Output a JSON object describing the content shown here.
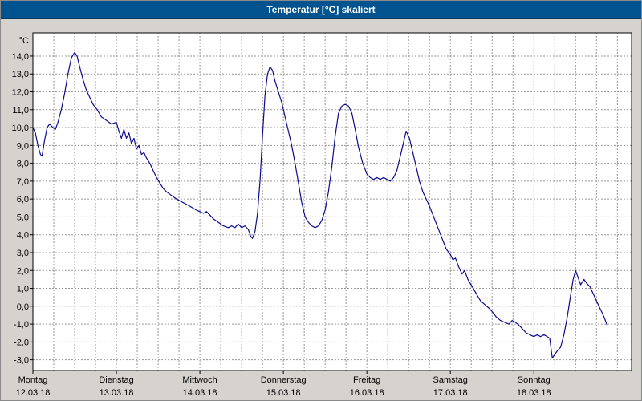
{
  "title_bar": {
    "title": "Temperatur [°C] skaliert",
    "bg_color": "#00538F",
    "text_color": "#ffffff"
  },
  "colors": {
    "window_bg": "#d6d3ce",
    "plot_bg": "#ffffff",
    "grid": "#979797",
    "axis": "#000000",
    "line": "#0b0b8f"
  },
  "chart_data": {
    "type": "line",
    "title": "Temperatur [°C] skaliert",
    "ylabel": "°C",
    "y_unit_label": "°C",
    "grid": "dashed",
    "legend": "none",
    "ylim": [
      -3.6,
      15.3
    ],
    "xlim_days": [
      0,
      7.17
    ],
    "x_minor_tick_days": 0.25,
    "y_ticks": [
      {
        "value": 14,
        "label": "14,0"
      },
      {
        "value": 13,
        "label": "13,0"
      },
      {
        "value": 12,
        "label": "12,0"
      },
      {
        "value": 11,
        "label": "11,0"
      },
      {
        "value": 10,
        "label": "10,0"
      },
      {
        "value": 9,
        "label": "9,0"
      },
      {
        "value": 8,
        "label": "8,0"
      },
      {
        "value": 7,
        "label": "7,0"
      },
      {
        "value": 6,
        "label": "6,0"
      },
      {
        "value": 5,
        "label": "5,0"
      },
      {
        "value": 4,
        "label": "4,0"
      },
      {
        "value": 3,
        "label": "3,0"
      },
      {
        "value": 2,
        "label": "2,0"
      },
      {
        "value": 1,
        "label": "1,0"
      },
      {
        "value": 0,
        "label": "0,0"
      },
      {
        "value": -1,
        "label": "-1,0"
      },
      {
        "value": -2,
        "label": "-2,0"
      },
      {
        "value": -3,
        "label": "-3,0"
      }
    ],
    "x_days": [
      {
        "t": 0,
        "day": "Montag",
        "date": "12.03.18"
      },
      {
        "t": 1,
        "day": "Dienstag",
        "date": "13.03.18"
      },
      {
        "t": 2,
        "day": "Mittwoch",
        "date": "14.03.18"
      },
      {
        "t": 3,
        "day": "Donnerstag",
        "date": "15.03.18"
      },
      {
        "t": 4,
        "day": "Freitag",
        "date": "16.03.18"
      },
      {
        "t": 5,
        "day": "Samstag",
        "date": "17.03.18"
      },
      {
        "t": 6,
        "day": "Sonntag",
        "date": "18.03.18"
      }
    ],
    "series": [
      {
        "name": "Temperatur",
        "color": "#0b0b8f",
        "points": [
          [
            0.0,
            10.0
          ],
          [
            0.03,
            9.7
          ],
          [
            0.06,
            9.0
          ],
          [
            0.09,
            8.5
          ],
          [
            0.11,
            8.4
          ],
          [
            0.14,
            9.3
          ],
          [
            0.17,
            10.0
          ],
          [
            0.2,
            10.2
          ],
          [
            0.24,
            10.0
          ],
          [
            0.27,
            9.9
          ],
          [
            0.3,
            10.3
          ],
          [
            0.34,
            11.0
          ],
          [
            0.38,
            11.9
          ],
          [
            0.42,
            13.0
          ],
          [
            0.46,
            13.9
          ],
          [
            0.5,
            14.2
          ],
          [
            0.53,
            14.0
          ],
          [
            0.56,
            13.4
          ],
          [
            0.6,
            12.7
          ],
          [
            0.64,
            12.1
          ],
          [
            0.68,
            11.7
          ],
          [
            0.72,
            11.3
          ],
          [
            0.77,
            11.0
          ],
          [
            0.82,
            10.6
          ],
          [
            0.88,
            10.4
          ],
          [
            0.94,
            10.2
          ],
          [
            1.0,
            10.3
          ],
          [
            1.03,
            9.8
          ],
          [
            1.06,
            9.4
          ],
          [
            1.09,
            9.9
          ],
          [
            1.12,
            9.4
          ],
          [
            1.15,
            9.7
          ],
          [
            1.18,
            9.1
          ],
          [
            1.21,
            9.4
          ],
          [
            1.24,
            8.8
          ],
          [
            1.27,
            9.0
          ],
          [
            1.3,
            8.5
          ],
          [
            1.33,
            8.6
          ],
          [
            1.36,
            8.3
          ],
          [
            1.4,
            8.0
          ],
          [
            1.44,
            7.6
          ],
          [
            1.48,
            7.2
          ],
          [
            1.52,
            6.9
          ],
          [
            1.56,
            6.6
          ],
          [
            1.6,
            6.4
          ],
          [
            1.66,
            6.2
          ],
          [
            1.72,
            6.0
          ],
          [
            1.8,
            5.8
          ],
          [
            1.88,
            5.6
          ],
          [
            1.95,
            5.4
          ],
          [
            2.0,
            5.3
          ],
          [
            2.04,
            5.2
          ],
          [
            2.08,
            5.3
          ],
          [
            2.12,
            5.1
          ],
          [
            2.16,
            4.9
          ],
          [
            2.22,
            4.7
          ],
          [
            2.28,
            4.5
          ],
          [
            2.34,
            4.4
          ],
          [
            2.38,
            4.5
          ],
          [
            2.42,
            4.4
          ],
          [
            2.46,
            4.6
          ],
          [
            2.5,
            4.4
          ],
          [
            2.54,
            4.5
          ],
          [
            2.58,
            4.3
          ],
          [
            2.61,
            3.9
          ],
          [
            2.63,
            3.8
          ],
          [
            2.66,
            4.2
          ],
          [
            2.69,
            5.2
          ],
          [
            2.72,
            7.0
          ],
          [
            2.75,
            9.5
          ],
          [
            2.78,
            11.8
          ],
          [
            2.81,
            13.0
          ],
          [
            2.84,
            13.4
          ],
          [
            2.87,
            13.2
          ],
          [
            2.9,
            12.6
          ],
          [
            2.94,
            12.0
          ],
          [
            2.98,
            11.4
          ],
          [
            3.02,
            10.6
          ],
          [
            3.06,
            9.8
          ],
          [
            3.1,
            9.0
          ],
          [
            3.14,
            8.0
          ],
          [
            3.18,
            6.9
          ],
          [
            3.22,
            5.8
          ],
          [
            3.26,
            5.0
          ],
          [
            3.3,
            4.7
          ],
          [
            3.34,
            4.5
          ],
          [
            3.38,
            4.4
          ],
          [
            3.42,
            4.5
          ],
          [
            3.46,
            4.8
          ],
          [
            3.5,
            5.4
          ],
          [
            3.54,
            6.4
          ],
          [
            3.58,
            7.8
          ],
          [
            3.62,
            9.5
          ],
          [
            3.66,
            10.8
          ],
          [
            3.7,
            11.2
          ],
          [
            3.74,
            11.3
          ],
          [
            3.78,
            11.2
          ],
          [
            3.82,
            10.8
          ],
          [
            3.86,
            9.9
          ],
          [
            3.9,
            8.9
          ],
          [
            3.95,
            8.0
          ],
          [
            4.0,
            7.4
          ],
          [
            4.04,
            7.2
          ],
          [
            4.08,
            7.1
          ],
          [
            4.12,
            7.2
          ],
          [
            4.16,
            7.1
          ],
          [
            4.2,
            7.2
          ],
          [
            4.24,
            7.1
          ],
          [
            4.28,
            7.0
          ],
          [
            4.32,
            7.2
          ],
          [
            4.36,
            7.6
          ],
          [
            4.4,
            8.4
          ],
          [
            4.44,
            9.2
          ],
          [
            4.47,
            9.8
          ],
          [
            4.51,
            9.4
          ],
          [
            4.55,
            8.6
          ],
          [
            4.59,
            7.8
          ],
          [
            4.63,
            7.0
          ],
          [
            4.67,
            6.4
          ],
          [
            4.71,
            6.0
          ],
          [
            4.75,
            5.6
          ],
          [
            4.8,
            5.0
          ],
          [
            4.85,
            4.4
          ],
          [
            4.9,
            3.8
          ],
          [
            4.95,
            3.2
          ],
          [
            5.0,
            2.9
          ],
          [
            5.03,
            2.6
          ],
          [
            5.06,
            2.7
          ],
          [
            5.1,
            2.2
          ],
          [
            5.14,
            1.8
          ],
          [
            5.17,
            2.0
          ],
          [
            5.21,
            1.5
          ],
          [
            5.26,
            1.1
          ],
          [
            5.31,
            0.7
          ],
          [
            5.36,
            0.3
          ],
          [
            5.41,
            0.1
          ],
          [
            5.46,
            -0.1
          ],
          [
            5.5,
            -0.3
          ],
          [
            5.55,
            -0.6
          ],
          [
            5.6,
            -0.8
          ],
          [
            5.65,
            -0.9
          ],
          [
            5.7,
            -1.0
          ],
          [
            5.74,
            -0.8
          ],
          [
            5.78,
            -0.9
          ],
          [
            5.83,
            -1.1
          ],
          [
            5.87,
            -1.3
          ],
          [
            5.91,
            -1.5
          ],
          [
            5.95,
            -1.6
          ],
          [
            6.0,
            -1.7
          ],
          [
            6.04,
            -1.6
          ],
          [
            6.08,
            -1.7
          ],
          [
            6.12,
            -1.6
          ],
          [
            6.16,
            -1.7
          ],
          [
            6.19,
            -1.8
          ],
          [
            6.22,
            -2.9
          ],
          [
            6.25,
            -2.7
          ],
          [
            6.28,
            -2.5
          ],
          [
            6.32,
            -2.3
          ],
          [
            6.36,
            -1.6
          ],
          [
            6.4,
            -0.6
          ],
          [
            6.44,
            0.6
          ],
          [
            6.47,
            1.5
          ],
          [
            6.5,
            2.0
          ],
          [
            6.53,
            1.6
          ],
          [
            6.56,
            1.2
          ],
          [
            6.6,
            1.5
          ],
          [
            6.63,
            1.3
          ],
          [
            6.67,
            1.1
          ],
          [
            6.72,
            0.6
          ],
          [
            6.76,
            0.2
          ],
          [
            6.8,
            -0.2
          ],
          [
            6.84,
            -0.6
          ],
          [
            6.88,
            -1.1
          ]
        ]
      }
    ]
  }
}
